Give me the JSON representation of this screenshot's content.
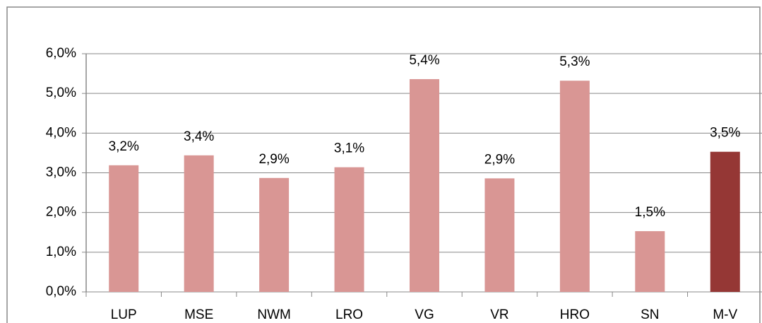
{
  "chart_data": {
    "type": "bar",
    "categories": [
      "LUP",
      "MSE",
      "NWM",
      "LRO",
      "VG",
      "VR",
      "HRO",
      "SN",
      "M-V"
    ],
    "values": [
      3.19,
      3.44,
      2.87,
      3.14,
      5.36,
      2.86,
      5.32,
      1.53,
      3.53
    ],
    "value_labels": [
      "3,2%",
      "3,4%",
      "2,9%",
      "3,1%",
      "5,4%",
      "2,9%",
      "5,3%",
      "1,5%",
      "3,5%"
    ],
    "colors": [
      "#d99694",
      "#d99694",
      "#d99694",
      "#d99694",
      "#d99694",
      "#d99694",
      "#d99694",
      "#d99694",
      "#953735"
    ],
    "ylim": [
      0,
      6
    ],
    "yticks": [
      {
        "value": 0,
        "label": "0,0%"
      },
      {
        "value": 1,
        "label": "1,0%"
      },
      {
        "value": 2,
        "label": "2,0%"
      },
      {
        "value": 3,
        "label": "3,0%"
      },
      {
        "value": 4,
        "label": "4,0%"
      },
      {
        "value": 5,
        "label": "5,0%"
      },
      {
        "value": 6,
        "label": "6,0%"
      }
    ],
    "grid": true
  }
}
